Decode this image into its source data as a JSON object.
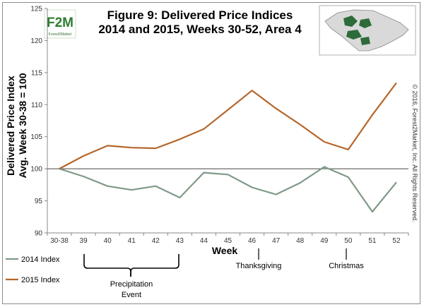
{
  "chart_data": {
    "type": "line",
    "title_line1": "Figure 9: Delivered Price Indices",
    "title_line2": "2014 and 2015, Weeks 30-52, Area 4",
    "ylabel_line1": "Delivered Price Index",
    "ylabel_line2": "Avg. Week 30-38 = 100",
    "xlabel": "Week",
    "categories": [
      "30-38",
      "39",
      "40",
      "41",
      "42",
      "43",
      "44",
      "45",
      "46",
      "47",
      "48",
      "49",
      "50",
      "51",
      "52"
    ],
    "yticks": [
      90,
      95,
      100,
      105,
      110,
      115,
      120,
      125
    ],
    "ylim": [
      90,
      125
    ],
    "series": [
      {
        "name": "2014 Index",
        "color": "#7f9a87",
        "values": [
          100,
          98.8,
          97.3,
          96.7,
          97.3,
          95.5,
          99.4,
          99.1,
          97.1,
          96.0,
          97.8,
          100.3,
          98.7,
          93.3,
          97.9
        ]
      },
      {
        "name": "2015 Index",
        "color": "#b5662a",
        "values": [
          100,
          102.0,
          103.6,
          103.3,
          103.2,
          104.6,
          106.2,
          109.2,
          112.2,
          109.4,
          106.9,
          104.2,
          103.0,
          108.4,
          113.4
        ]
      }
    ],
    "annotations": {
      "precipitation_line1": "Precipitation",
      "precipitation_line2": "Event",
      "thanksgiving": "Thanksgiving",
      "christmas": "Christmas"
    },
    "copyright": "© 2016, Forest2Market, Inc. All Rights Reserved.",
    "logo_text": "F2M",
    "logo_subtext": "Forest2Market",
    "grid": false,
    "legend_position": "bottom-left",
    "map_colors": {
      "land": "#d9d9d9",
      "area": "#2e6b3a"
    }
  }
}
